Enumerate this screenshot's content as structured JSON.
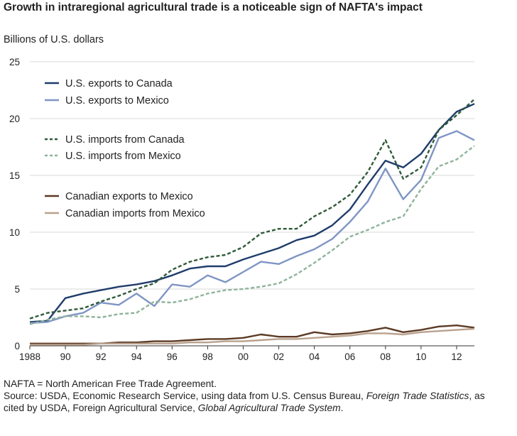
{
  "chart_data": {
    "type": "line",
    "title": "Growth in intraregional agricultural trade is a noticeable sign of NAFTA's impact",
    "ylabel": "Billions of U.S. dollars",
    "xlabel": "",
    "xlim": [
      1988,
      2013
    ],
    "ylim": [
      0,
      25
    ],
    "yticks": [
      0,
      5,
      10,
      15,
      20,
      25
    ],
    "xtick_values": [
      1988,
      1990,
      1992,
      1994,
      1996,
      1998,
      2000,
      2002,
      2004,
      2006,
      2008,
      2010,
      2012
    ],
    "xtick_labels": [
      "1988",
      "90",
      "92",
      "94",
      "96",
      "98",
      "00",
      "02",
      "04",
      "06",
      "08",
      "10",
      "12"
    ],
    "grid": "horizontal",
    "legend_position": "top-left",
    "x": [
      1988,
      1989,
      1990,
      1991,
      1992,
      1993,
      1994,
      1995,
      1996,
      1997,
      1998,
      1999,
      2000,
      2001,
      2002,
      2003,
      2004,
      2005,
      2006,
      2007,
      2008,
      2009,
      2010,
      2011,
      2012,
      2013
    ],
    "series": [
      {
        "name": "U.S. exports to Canada",
        "color": "#1f3d6b",
        "style": "solid",
        "values": [
          2.1,
          2.2,
          4.2,
          4.6,
          4.9,
          5.2,
          5.4,
          5.7,
          6.2,
          6.8,
          7.0,
          7.0,
          7.6,
          8.1,
          8.6,
          9.3,
          9.7,
          10.6,
          12.0,
          14.2,
          16.3,
          15.7,
          16.9,
          19.0,
          20.6,
          21.3
        ]
      },
      {
        "name": "U.S. exports to Mexico",
        "color": "#7f95c4",
        "style": "solid",
        "values": [
          2.0,
          2.1,
          2.6,
          2.9,
          3.8,
          3.6,
          4.6,
          3.5,
          5.4,
          5.2,
          6.2,
          5.6,
          6.5,
          7.4,
          7.2,
          7.9,
          8.5,
          9.4,
          10.9,
          12.7,
          15.6,
          12.9,
          14.6,
          18.3,
          18.9,
          18.1
        ]
      },
      {
        "name": "U.S. imports from Canada",
        "color": "#2f5a3a",
        "style": "dashed",
        "values": [
          2.4,
          2.9,
          3.1,
          3.3,
          3.9,
          4.4,
          5.0,
          5.5,
          6.7,
          7.4,
          7.8,
          8.0,
          8.7,
          9.9,
          10.3,
          10.3,
          11.4,
          12.2,
          13.3,
          15.3,
          18.1,
          14.7,
          15.7,
          19.0,
          20.3,
          21.7
        ]
      },
      {
        "name": "U.S. imports from Mexico",
        "color": "#8fb39a",
        "style": "dashed",
        "values": [
          1.9,
          2.3,
          2.6,
          2.6,
          2.5,
          2.8,
          2.9,
          3.9,
          3.8,
          4.1,
          4.6,
          4.9,
          5.0,
          5.2,
          5.5,
          6.3,
          7.3,
          8.4,
          9.6,
          10.2,
          10.9,
          11.4,
          13.8,
          15.8,
          16.4,
          17.6
        ]
      },
      {
        "name": "Canadian exports to Mexico",
        "color": "#5c3a24",
        "style": "solid",
        "values": [
          0.2,
          0.2,
          0.2,
          0.2,
          0.2,
          0.3,
          0.3,
          0.4,
          0.4,
          0.5,
          0.6,
          0.6,
          0.7,
          1.0,
          0.8,
          0.8,
          1.2,
          1.0,
          1.1,
          1.3,
          1.6,
          1.2,
          1.4,
          1.7,
          1.8,
          1.6
        ]
      },
      {
        "name": "Canadian imports from Mexico",
        "color": "#b9a18e",
        "style": "solid",
        "values": [
          0.1,
          0.1,
          0.1,
          0.1,
          0.2,
          0.2,
          0.2,
          0.2,
          0.2,
          0.3,
          0.3,
          0.4,
          0.4,
          0.5,
          0.6,
          0.6,
          0.7,
          0.8,
          0.9,
          1.1,
          1.1,
          1.0,
          1.2,
          1.3,
          1.4,
          1.5
        ]
      }
    ]
  },
  "notes": {
    "line1": "NAFTA = North American Free Trade Agreement.",
    "source_a": "Source: USDA, Economic Research Service, using data from U.S. Census Bureau, ",
    "source_i1": "Foreign Trade Statistics",
    "source_b": ", as cited by USDA, Foreign Agricultural Service, ",
    "source_i2": "Global Agricultural Trade System",
    "source_c": "."
  }
}
